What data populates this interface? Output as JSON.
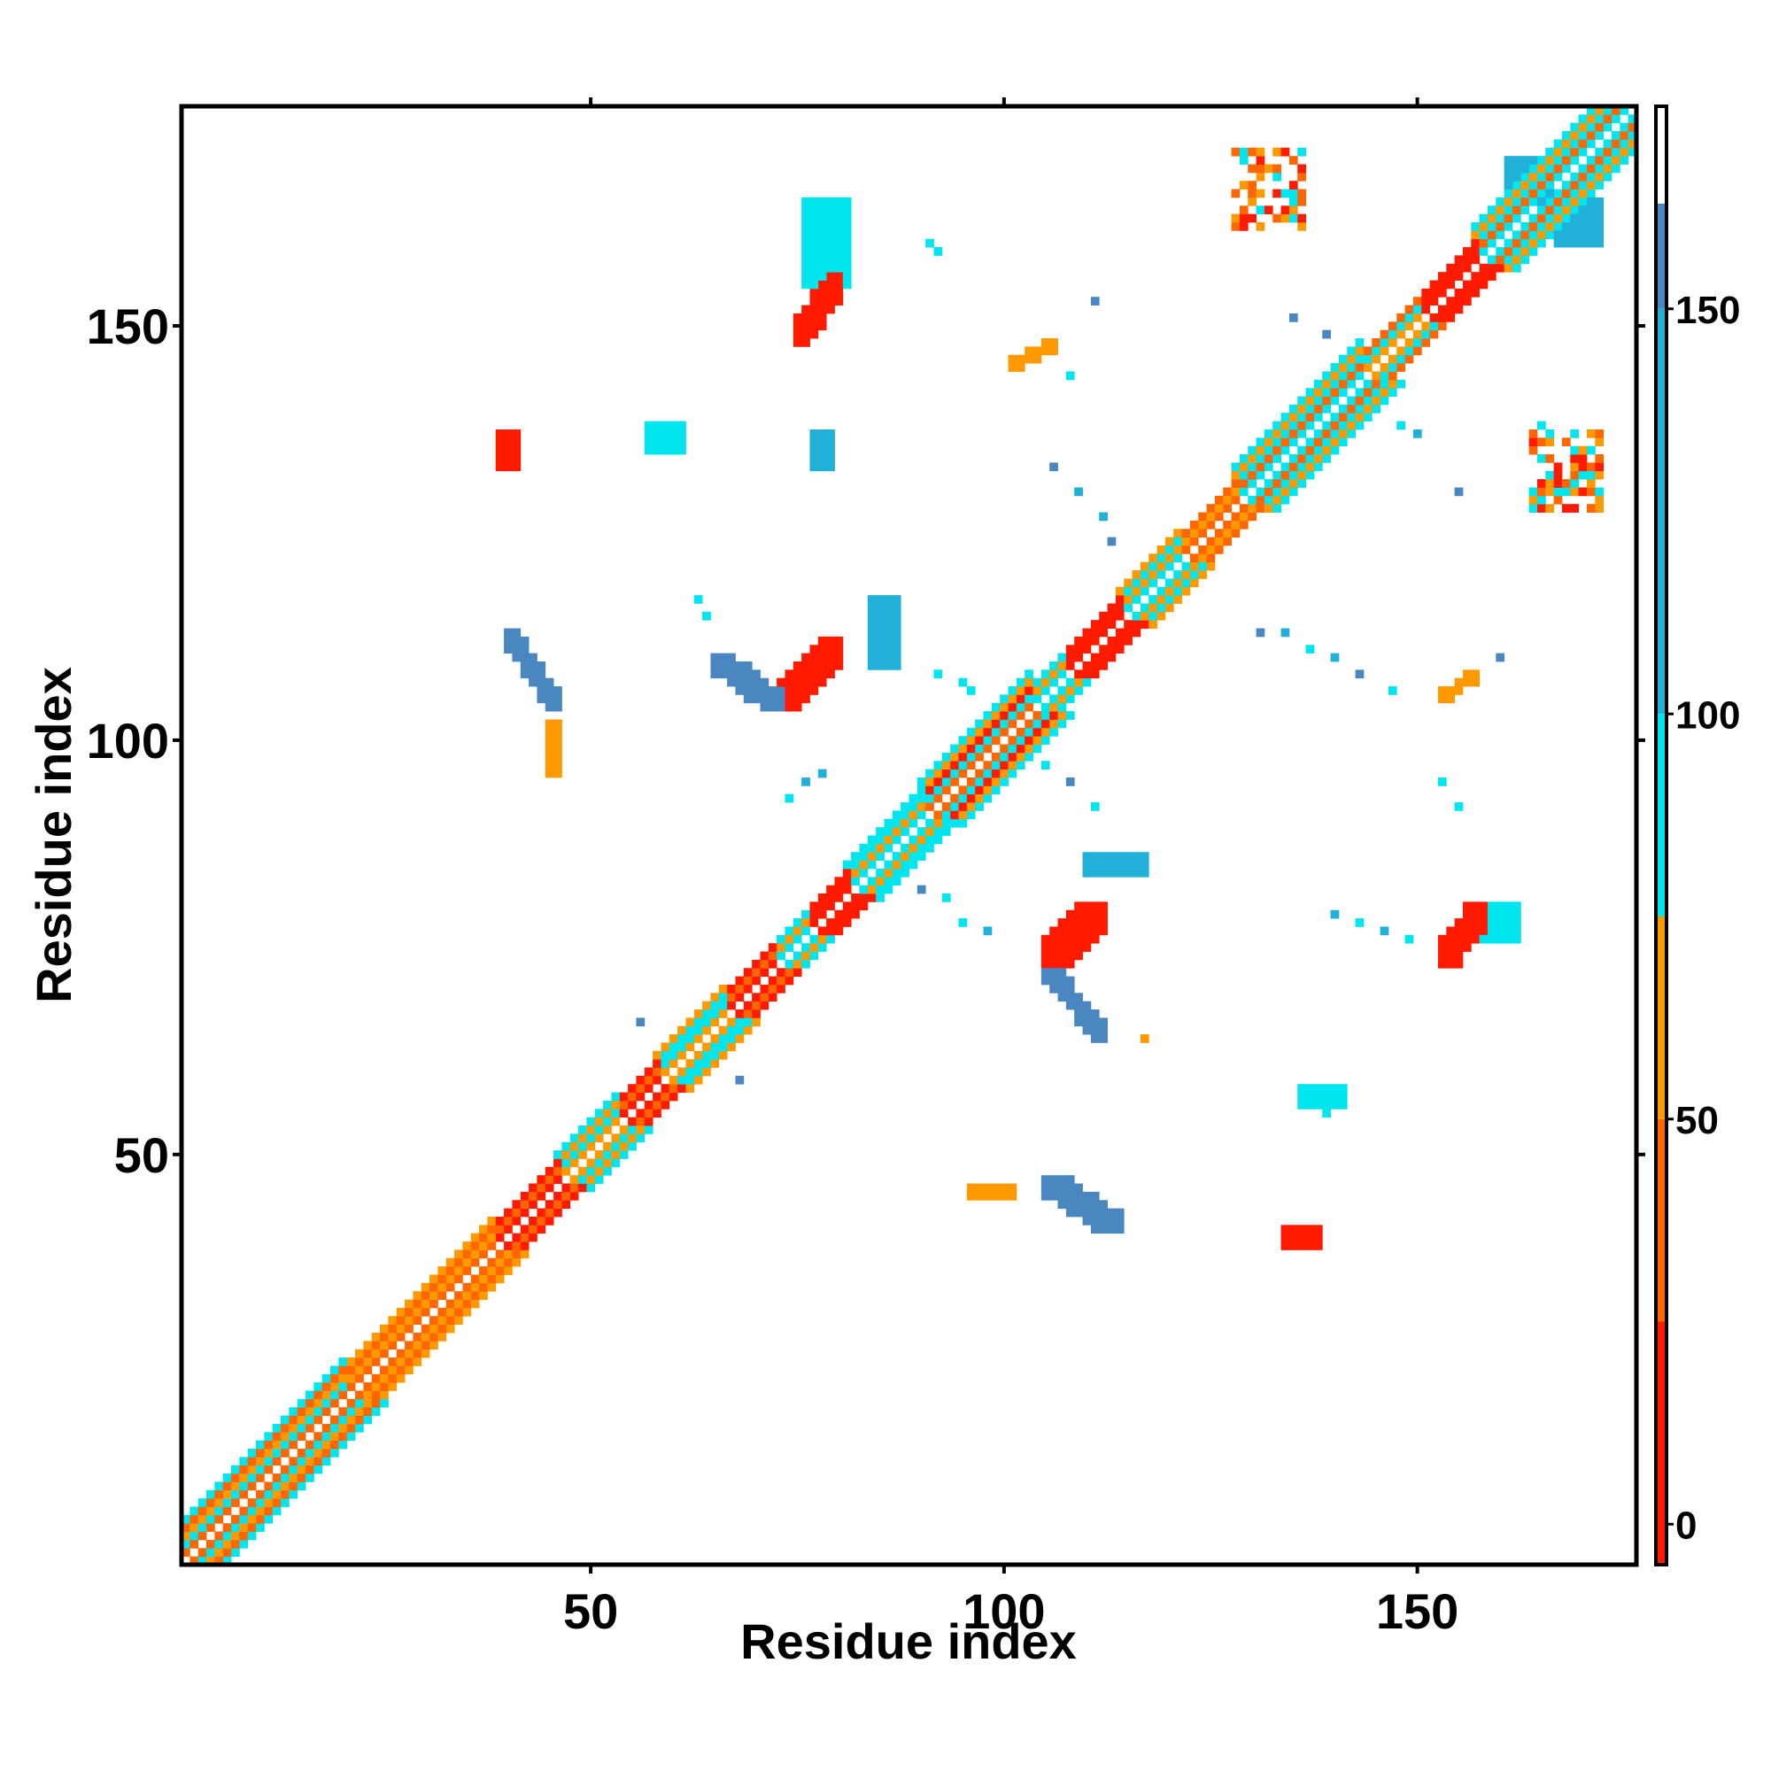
{
  "chart_data": {
    "type": "heatmap",
    "title": "",
    "xlabel": "Residue index",
    "ylabel": "Residue index",
    "xlim": [
      1,
      176
    ],
    "ylim": [
      1,
      176
    ],
    "x_ticks": [
      50,
      100,
      150
    ],
    "y_ticks": [
      50,
      100,
      150
    ],
    "grid": false,
    "colorbar": {
      "range": [
        -5,
        175
      ],
      "ticks": [
        0,
        50,
        100,
        150
      ],
      "bands": [
        {
          "from": -5,
          "to": 25,
          "color": "#ff1a00"
        },
        {
          "from": 25,
          "to": 50,
          "color": "#ff6600"
        },
        {
          "from": 50,
          "to": 75,
          "color": "#ff9900"
        },
        {
          "from": 75,
          "to": 100,
          "color": "#00e5ee"
        },
        {
          "from": 100,
          "to": 150,
          "color": "#20b0d8"
        },
        {
          "from": 150,
          "to": 163,
          "color": "#4a86c0"
        },
        {
          "from": 163,
          "to": 175,
          "color": "#ffffff"
        }
      ]
    },
    "colors": {
      "red": "#ff1a00",
      "red_orange": "#ff6600",
      "orange": "#ff9900",
      "cyan": "#00e5ee",
      "sky": "#20b0d8",
      "steel_blue": "#4a86c0"
    },
    "diagonal_bands": [
      {
        "start": 1,
        "end": 20,
        "offsets": [
          [
            1,
            "red_orange"
          ],
          [
            2,
            "cyan"
          ],
          [
            3,
            "orange"
          ],
          [
            4,
            "red_orange"
          ],
          [
            5,
            "cyan"
          ]
        ]
      },
      {
        "start": 20,
        "end": 38,
        "offsets": [
          [
            1,
            "red_orange"
          ],
          [
            2,
            "orange"
          ],
          [
            3,
            "red_orange"
          ],
          [
            4,
            "orange"
          ]
        ]
      },
      {
        "start": 38,
        "end": 46,
        "offsets": [
          [
            1,
            "red"
          ],
          [
            2,
            "red_orange"
          ],
          [
            3,
            "red"
          ]
        ]
      },
      {
        "start": 46,
        "end": 53,
        "offsets": [
          [
            1,
            "orange"
          ],
          [
            2,
            "cyan"
          ],
          [
            3,
            "orange"
          ],
          [
            4,
            "cyan"
          ]
        ]
      },
      {
        "start": 53,
        "end": 58,
        "offsets": [
          [
            1,
            "red"
          ],
          [
            2,
            "red_orange"
          ],
          [
            3,
            "red"
          ]
        ]
      },
      {
        "start": 58,
        "end": 66,
        "offsets": [
          [
            1,
            "orange"
          ],
          [
            2,
            "cyan"
          ],
          [
            3,
            "cyan"
          ],
          [
            4,
            "orange"
          ]
        ]
      },
      {
        "start": 66,
        "end": 72,
        "offsets": [
          [
            1,
            "red"
          ],
          [
            2,
            "red_orange"
          ],
          [
            3,
            "red"
          ]
        ]
      },
      {
        "start": 72,
        "end": 76,
        "offsets": [
          [
            1,
            "cyan"
          ],
          [
            2,
            "orange"
          ],
          [
            3,
            "cyan"
          ]
        ]
      },
      {
        "start": 76,
        "end": 81,
        "offsets": [
          [
            1,
            "red"
          ],
          [
            2,
            "red"
          ],
          [
            3,
            "red"
          ]
        ]
      },
      {
        "start": 81,
        "end": 90,
        "offsets": [
          [
            1,
            "cyan"
          ],
          [
            2,
            "orange"
          ],
          [
            3,
            "cyan"
          ],
          [
            4,
            "cyan"
          ]
        ]
      },
      {
        "start": 90,
        "end": 103,
        "offsets": [
          [
            1,
            "red_orange"
          ],
          [
            2,
            "cyan"
          ],
          [
            3,
            "red"
          ],
          [
            4,
            "orange"
          ],
          [
            5,
            "cyan"
          ]
        ]
      },
      {
        "start": 103,
        "end": 107,
        "offsets": [
          [
            1,
            "cyan"
          ],
          [
            2,
            "orange"
          ],
          [
            3,
            "cyan"
          ]
        ]
      },
      {
        "start": 107,
        "end": 114,
        "offsets": [
          [
            1,
            "red"
          ],
          [
            2,
            "red"
          ],
          [
            3,
            "red"
          ]
        ]
      },
      {
        "start": 114,
        "end": 121,
        "offsets": [
          [
            1,
            "cyan"
          ],
          [
            2,
            "orange"
          ],
          [
            3,
            "cyan"
          ],
          [
            4,
            "orange"
          ]
        ]
      },
      {
        "start": 121,
        "end": 128,
        "offsets": [
          [
            1,
            "red_orange"
          ],
          [
            2,
            "orange"
          ],
          [
            3,
            "red_orange"
          ]
        ]
      },
      {
        "start": 128,
        "end": 143,
        "offsets": [
          [
            1,
            "cyan"
          ],
          [
            2,
            "red_orange"
          ],
          [
            3,
            "cyan"
          ],
          [
            4,
            "orange"
          ],
          [
            5,
            "cyan"
          ]
        ]
      },
      {
        "start": 143,
        "end": 150,
        "offsets": [
          [
            1,
            "orange"
          ],
          [
            2,
            "cyan"
          ],
          [
            3,
            "red_orange"
          ]
        ]
      },
      {
        "start": 150,
        "end": 157,
        "offsets": [
          [
            1,
            "red"
          ],
          [
            2,
            "red"
          ],
          [
            3,
            "red"
          ]
        ]
      },
      {
        "start": 157,
        "end": 176,
        "offsets": [
          [
            1,
            "cyan"
          ],
          [
            2,
            "red_orange"
          ],
          [
            3,
            "cyan"
          ],
          [
            4,
            "orange"
          ],
          [
            5,
            "cyan"
          ]
        ]
      }
    ],
    "patches": [
      {
        "x0": 40,
        "x1": 46,
        "y0": 104,
        "y1": 113,
        "shape": "antidiag",
        "w": 2,
        "color": "steel_blue"
      },
      {
        "x0": 45,
        "x1": 46,
        "y0": 96,
        "y1": 102,
        "shape": "rect",
        "color": "orange"
      },
      {
        "x0": 39,
        "x1": 41,
        "y0": 133,
        "y1": 137,
        "shape": "rect",
        "color": "red"
      },
      {
        "x0": 65,
        "x1": 73,
        "y0": 104,
        "y1": 110,
        "shape": "antidiag",
        "w": 2,
        "color": "steel_blue"
      },
      {
        "x0": 73,
        "x1": 80,
        "y0": 104,
        "y1": 112,
        "shape": "diag",
        "w": 3,
        "color": "red"
      },
      {
        "x0": 84,
        "x1": 87,
        "y0": 109,
        "y1": 117,
        "shape": "rect",
        "color": "sky"
      },
      {
        "x0": 75,
        "x1": 80,
        "y0": 148,
        "y1": 156,
        "shape": "diag",
        "w": 3,
        "color": "red"
      },
      {
        "x0": 76,
        "x1": 81,
        "y0": 155,
        "y1": 165,
        "shape": "rect",
        "color": "cyan"
      },
      {
        "x0": 57,
        "x1": 61,
        "y0": 135,
        "y1": 138,
        "shape": "rect",
        "color": "cyan"
      },
      {
        "x0": 77,
        "x1": 79,
        "y0": 133,
        "y1": 137,
        "shape": "rect",
        "color": "sky"
      },
      {
        "x0": 105,
        "x1": 112,
        "y0": 73,
        "y1": 80,
        "shape": "diag",
        "w": 3,
        "color": "red"
      },
      {
        "x0": 105,
        "x1": 112,
        "y0": 64,
        "y1": 73,
        "shape": "antidiag",
        "w": 2,
        "color": "steel_blue"
      },
      {
        "x0": 105,
        "x1": 114,
        "y0": 41,
        "y1": 47,
        "shape": "antidiag",
        "w": 2,
        "color": "steel_blue"
      },
      {
        "x0": 96,
        "x1": 101,
        "y0": 45,
        "y1": 46,
        "shape": "rect",
        "color": "orange"
      },
      {
        "x0": 110,
        "x1": 117,
        "y0": 84,
        "y1": 86,
        "shape": "rect",
        "color": "sky"
      },
      {
        "x0": 153,
        "x1": 158,
        "y0": 73,
        "y1": 80,
        "shape": "diag",
        "w": 3,
        "color": "red"
      },
      {
        "x0": 157,
        "x1": 162,
        "y0": 76,
        "y1": 80,
        "shape": "rect",
        "color": "cyan"
      },
      {
        "x0": 136,
        "x1": 141,
        "y0": 56,
        "y1": 58,
        "shape": "rect",
        "color": "cyan"
      },
      {
        "x0": 134,
        "x1": 138,
        "y0": 39,
        "y1": 41,
        "shape": "rect",
        "color": "red"
      },
      {
        "x0": 128,
        "x1": 136,
        "y0": 162,
        "y1": 171,
        "shape": "speckle",
        "colors": [
          "orange",
          "red_orange",
          "cyan",
          "red"
        ]
      },
      {
        "x0": 164,
        "x1": 172,
        "y0": 128,
        "y1": 137,
        "shape": "speckle",
        "colors": [
          "orange",
          "red_orange",
          "cyan",
          "red"
        ]
      },
      {
        "x0": 161,
        "x1": 166,
        "y0": 165,
        "y1": 170,
        "shape": "rect",
        "color": "sky"
      },
      {
        "x0": 167,
        "x1": 172,
        "y0": 160,
        "y1": 165,
        "shape": "rect",
        "color": "sky"
      },
      {
        "x0": 153,
        "x1": 157,
        "y0": 105,
        "y1": 108,
        "shape": "diag",
        "w": 1,
        "color": "orange"
      },
      {
        "x0": 101,
        "x1": 106,
        "y0": 145,
        "y1": 148,
        "shape": "diag",
        "w": 1,
        "color": "orange"
      }
    ],
    "scatter_cells": [
      [
        91,
        160,
        "cyan"
      ],
      [
        92,
        159,
        "cyan"
      ],
      [
        111,
        153,
        "steel_blue"
      ],
      [
        108,
        144,
        "cyan"
      ],
      [
        106,
        133,
        "steel_blue"
      ],
      [
        109,
        130,
        "sky"
      ],
      [
        112,
        127,
        "sky"
      ],
      [
        113,
        124,
        "steel_blue"
      ],
      [
        135,
        151,
        "steel_blue"
      ],
      [
        139,
        149,
        "steel_blue"
      ],
      [
        145,
        140,
        "cyan"
      ],
      [
        148,
        138,
        "cyan"
      ],
      [
        150,
        137,
        "sky"
      ],
      [
        155,
        130,
        "steel_blue"
      ],
      [
        165,
        138,
        "cyan"
      ],
      [
        63,
        117,
        "cyan"
      ],
      [
        64,
        115,
        "cyan"
      ],
      [
        92,
        108,
        "cyan"
      ],
      [
        95,
        107,
        "cyan"
      ],
      [
        96,
        106,
        "cyan"
      ],
      [
        131,
        113,
        "steel_blue"
      ],
      [
        134,
        113,
        "sky"
      ],
      [
        137,
        111,
        "cyan"
      ],
      [
        140,
        110,
        "sky"
      ],
      [
        143,
        108,
        "steel_blue"
      ],
      [
        147,
        106,
        "cyan"
      ],
      [
        160,
        110,
        "steel_blue"
      ],
      [
        153,
        95,
        "cyan"
      ],
      [
        155,
        92,
        "cyan"
      ],
      [
        76,
        95,
        "sky"
      ],
      [
        74,
        93,
        "cyan"
      ],
      [
        78,
        96,
        "sky"
      ],
      [
        84,
        86,
        "cyan"
      ],
      [
        87,
        83,
        "cyan"
      ],
      [
        90,
        82,
        "steel_blue"
      ],
      [
        93,
        81,
        "cyan"
      ],
      [
        95,
        78,
        "cyan"
      ],
      [
        98,
        77,
        "sky"
      ],
      [
        105,
        97,
        "cyan"
      ],
      [
        108,
        95,
        "steel_blue"
      ],
      [
        111,
        92,
        "cyan"
      ],
      [
        56,
        66,
        "steel_blue"
      ],
      [
        68,
        59,
        "steel_blue"
      ],
      [
        117,
        64,
        "orange"
      ],
      [
        140,
        79,
        "sky"
      ],
      [
        143,
        78,
        "cyan"
      ],
      [
        146,
        77,
        "sky"
      ],
      [
        149,
        76,
        "cyan"
      ],
      [
        141,
        56,
        "sky"
      ],
      [
        139,
        55,
        "cyan"
      ]
    ]
  }
}
